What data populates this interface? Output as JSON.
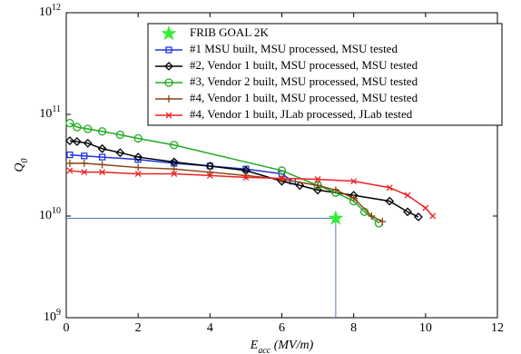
{
  "chart_data": {
    "type": "line",
    "x_label": "E_acc (MV/m)",
    "y_label": "Q_0",
    "xlim": [
      0,
      12
    ],
    "xticks": [
      0,
      2,
      4,
      6,
      8,
      10,
      12
    ],
    "ylim": [
      1000000000,
      1000000000000
    ],
    "yticks": [
      {
        "value": 1000000000,
        "label": "10^9"
      },
      {
        "value": 10000000000,
        "label": "10^10"
      },
      {
        "value": 100000000000,
        "label": "10^11"
      },
      {
        "value": 1000000000000,
        "label": "10^12"
      }
    ],
    "log_y": true,
    "legend": "upper right",
    "goal": {
      "name": "FRIB GOAL 2K",
      "color": "#33ee33",
      "x": 7.5,
      "y": 9500000000
    },
    "series": [
      {
        "name": "#1 MSU built, MSU processed, MSU tested",
        "color": "#2233dd",
        "marker": "square",
        "x": [
          0.1,
          0.5,
          1,
          2,
          3,
          4,
          5,
          6,
          6.3
        ],
        "values": [
          40000000000,
          39000000000,
          38000000000,
          36000000000,
          33000000000,
          31000000000,
          29000000000,
          26000000000,
          22000000000
        ]
      },
      {
        "name": "#2, Vendor 1 built, MSU processed, MSU tested",
        "color": "#000000",
        "marker": "diamond",
        "x": [
          0.1,
          0.3,
          0.6,
          1,
          1.5,
          2,
          3,
          4,
          5,
          6,
          6.5,
          7,
          8,
          9,
          9.5,
          9.8
        ],
        "values": [
          55000000000,
          54000000000,
          52000000000,
          46000000000,
          42000000000,
          38000000000,
          34000000000,
          31000000000,
          28000000000,
          22000000000,
          20000000000,
          18000000000,
          16000000000,
          14000000000,
          11000000000,
          9800000000
        ]
      },
      {
        "name": "#3, Vendor 2 built, MSU processed, MSU tested",
        "color": "#22aa22",
        "marker": "circle",
        "x": [
          0.1,
          0.3,
          0.6,
          1,
          1.5,
          2,
          3,
          6,
          7,
          7.5,
          8,
          8.3,
          8.7
        ],
        "values": [
          82000000000,
          75000000000,
          72000000000,
          68000000000,
          63000000000,
          58000000000,
          50000000000,
          28000000000,
          20000000000,
          17000000000,
          14000000000,
          11000000000,
          8500000000
        ]
      },
      {
        "name": "#4, Vendor 1 built, MSU processed, MSU tested",
        "color": "#8b4513",
        "marker": "plus",
        "x": [
          0.1,
          0.5,
          1,
          2,
          3,
          4,
          5,
          6,
          7,
          7.5,
          8,
          8.5,
          8.8
        ],
        "values": [
          33000000000,
          33000000000,
          32000000000,
          30000000000,
          29000000000,
          27000000000,
          25000000000,
          23000000000,
          20000000000,
          18000000000,
          15000000000,
          10000000000,
          8800000000
        ]
      },
      {
        "name": "#4, Vendor 1 built, JLab processed, JLab tested",
        "color": "#ee2222",
        "marker": "x",
        "x": [
          0.1,
          0.5,
          1,
          2,
          3,
          4,
          5,
          6,
          7,
          8,
          9,
          9.5,
          10,
          10.2
        ],
        "values": [
          28000000000,
          27000000000,
          27000000000,
          26000000000,
          26000000000,
          25000000000,
          24000000000,
          23500000000,
          23000000000,
          22000000000,
          19000000000,
          16000000000,
          12000000000,
          10000000000
        ]
      }
    ]
  }
}
